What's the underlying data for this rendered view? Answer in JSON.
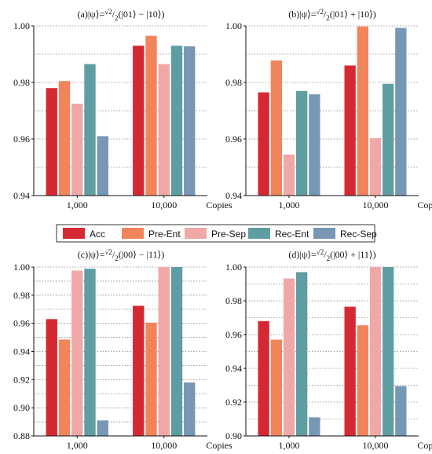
{
  "chart_data": [
    {
      "type": "bar",
      "title": "(a)|ψ⟩=√2/2(|01⟩ − |10⟩)",
      "categories": [
        "1,000",
        "10,000"
      ],
      "xlabel": "Copies",
      "ylim": [
        0.94,
        1.0
      ],
      "yticks": [
        "0.94",
        "0.96",
        "0.98",
        "1.00"
      ],
      "series": [
        {
          "name": "Acc",
          "values": [
            0.978,
            0.993
          ]
        },
        {
          "name": "Pre-Ent",
          "values": [
            0.9805,
            0.9965
          ]
        },
        {
          "name": "Pre-Sep",
          "values": [
            0.9725,
            0.9865
          ]
        },
        {
          "name": "Rec-Ent",
          "values": [
            0.9865,
            0.993
          ]
        },
        {
          "name": "Rec-Sep",
          "values": [
            0.961,
            0.9928
          ]
        }
      ]
    },
    {
      "type": "bar",
      "title": "(b)|ψ⟩=√2/2(|01⟩ + |10⟩)",
      "categories": [
        "1,000",
        "10,000"
      ],
      "xlabel": "Copies",
      "ylim": [
        0.94,
        1.0
      ],
      "yticks": [
        "0.94",
        "0.96",
        "0.98",
        "1.00"
      ],
      "series": [
        {
          "name": "Acc",
          "values": [
            0.9765,
            0.986
          ]
        },
        {
          "name": "Pre-Ent",
          "values": [
            0.9878,
            0.9998
          ]
        },
        {
          "name": "Pre-Sep",
          "values": [
            0.9545,
            0.9603
          ]
        },
        {
          "name": "Rec-Ent",
          "values": [
            0.977,
            0.9795
          ]
        },
        {
          "name": "Rec-Sep",
          "values": [
            0.9758,
            0.9993
          ]
        }
      ]
    },
    {
      "type": "bar",
      "title": "(c)|ψ⟩=√2/2(|00⟩ − |11⟩)",
      "categories": [
        "1,000",
        "10,000"
      ],
      "xlabel": "Copies",
      "ylim": [
        0.88,
        1.0
      ],
      "yticks": [
        "0.88",
        "0.90",
        "0.92",
        "0.94",
        "0.96",
        "0.98",
        "1.00"
      ],
      "series": [
        {
          "name": "Acc",
          "values": [
            0.963,
            0.9725
          ]
        },
        {
          "name": "Pre-Ent",
          "values": [
            0.9485,
            0.9605
          ]
        },
        {
          "name": "Pre-Sep",
          "values": [
            0.9975,
            1.0
          ]
        },
        {
          "name": "Rec-Ent",
          "values": [
            0.9988,
            1.0
          ]
        },
        {
          "name": "Rec-Sep",
          "values": [
            0.891,
            0.918
          ]
        }
      ]
    },
    {
      "type": "bar",
      "title": "(d)|ψ⟩=√2/2(|00⟩ + |11⟩)",
      "categories": [
        "1,000",
        "10,000"
      ],
      "xlabel": "Copies",
      "ylim": [
        0.9,
        1.0
      ],
      "yticks": [
        "0.90",
        "0.92",
        "0.94",
        "0.96",
        "0.98",
        "1.00"
      ],
      "series": [
        {
          "name": "Acc",
          "values": [
            0.968,
            0.9765
          ]
        },
        {
          "name": "Pre-Ent",
          "values": [
            0.957,
            0.9655
          ]
        },
        {
          "name": "Pre-Sep",
          "values": [
            0.9932,
            1.0
          ]
        },
        {
          "name": "Rec-Ent",
          "values": [
            0.997,
            1.0
          ]
        },
        {
          "name": "Rec-Sep",
          "values": [
            0.911,
            0.9295
          ]
        }
      ]
    }
  ],
  "legend": {
    "placement": "center",
    "items": [
      {
        "name": "Acc",
        "color": "#d62832"
      },
      {
        "name": "Pre-Ent",
        "color": "#f2845c"
      },
      {
        "name": "Pre-Sep",
        "color": "#efa8a6"
      },
      {
        "name": "Rec-Ent",
        "color": "#5e9ea2"
      },
      {
        "name": "Rec-Sep",
        "color": "#7797b4"
      }
    ]
  },
  "grid": "dotted horizontal"
}
